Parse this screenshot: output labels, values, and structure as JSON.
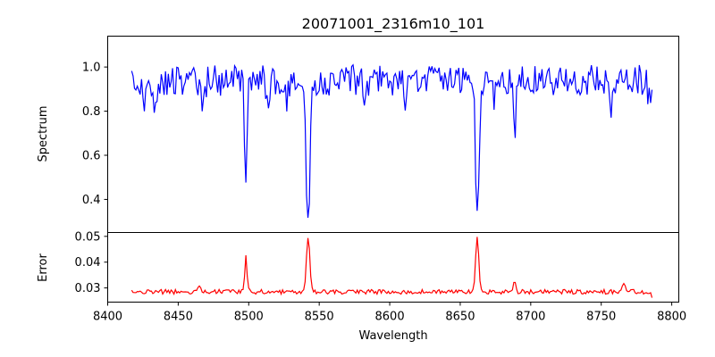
{
  "chart_data": [
    {
      "type": "line",
      "panel": "top",
      "title": "20071001_2316m10_101",
      "xlabel": "",
      "ylabel": "Spectrum",
      "xlim": [
        8400,
        8805
      ],
      "ylim": [
        0.25,
        1.14
      ],
      "yticks": [
        0.4,
        0.6,
        0.8,
        1.0
      ],
      "ytick_labels": [
        "0.4",
        "0.6",
        "0.8",
        "1.0"
      ],
      "grid": false,
      "series": [
        {
          "color": "#0000ff",
          "x_range": [
            8417,
            8786
          ],
          "sample_step": 1,
          "baseline": 0.94,
          "noise_amplitude": 0.07,
          "absorption_lines": [
            {
              "center": 8498.0,
              "depth": 0.52,
              "width": 0.9
            },
            {
              "center": 8542.1,
              "depth": 0.68,
              "width": 1.3
            },
            {
              "center": 8662.1,
              "depth": 0.64,
              "width": 1.2
            },
            {
              "center": 8688.6,
              "depth": 0.24,
              "width": 0.8
            },
            {
              "center": 8434.0,
              "depth": 0.14,
              "width": 1.0
            },
            {
              "center": 8426.0,
              "depth": 0.12,
              "width": 1.0
            },
            {
              "center": 8468.0,
              "depth": 0.12,
              "width": 1.0
            },
            {
              "center": 8514.0,
              "depth": 0.12,
              "width": 1.0
            },
            {
              "center": 8527.0,
              "depth": 0.1,
              "width": 1.0
            },
            {
              "center": 8582.0,
              "depth": 0.1,
              "width": 1.0
            },
            {
              "center": 8611.0,
              "depth": 0.12,
              "width": 1.0
            },
            {
              "center": 8674.0,
              "depth": 0.12,
              "width": 1.0
            },
            {
              "center": 8757.0,
              "depth": 0.1,
              "width": 1.0
            },
            {
              "center": 8784.0,
              "depth": 0.08,
              "width": 1.0
            }
          ]
        }
      ]
    },
    {
      "type": "line",
      "panel": "bottom",
      "xlabel": "Wavelength",
      "ylabel": "Error",
      "xlim": [
        8400,
        8805
      ],
      "ylim": [
        0.0245,
        0.0515
      ],
      "xticks": [
        8400,
        8450,
        8500,
        8550,
        8600,
        8650,
        8700,
        8750,
        8800
      ],
      "xtick_labels": [
        "8400",
        "8450",
        "8500",
        "8550",
        "8600",
        "8650",
        "8700",
        "8750",
        "8800"
      ],
      "yticks": [
        0.03,
        0.04,
        0.05
      ],
      "ytick_labels": [
        "0.03",
        "0.04",
        "0.05"
      ],
      "grid": false,
      "series": [
        {
          "color": "#ff0000",
          "x_range": [
            8417,
            8786
          ],
          "sample_step": 1,
          "baseline": 0.0285,
          "noise_amplitude": 0.0009,
          "emission_peaks": [
            {
              "center": 8498.0,
              "height": 0.0135,
              "width": 0.8
            },
            {
              "center": 8542.1,
              "height": 0.0215,
              "width": 1.2
            },
            {
              "center": 8662.1,
              "height": 0.0218,
              "width": 1.1
            },
            {
              "center": 8688.6,
              "height": 0.0045,
              "width": 0.8
            },
            {
              "center": 8465.0,
              "height": 0.0025,
              "width": 1.0
            },
            {
              "center": 8766.0,
              "height": 0.003,
              "width": 1.0
            }
          ],
          "end_value": 0.0262
        }
      ]
    }
  ]
}
